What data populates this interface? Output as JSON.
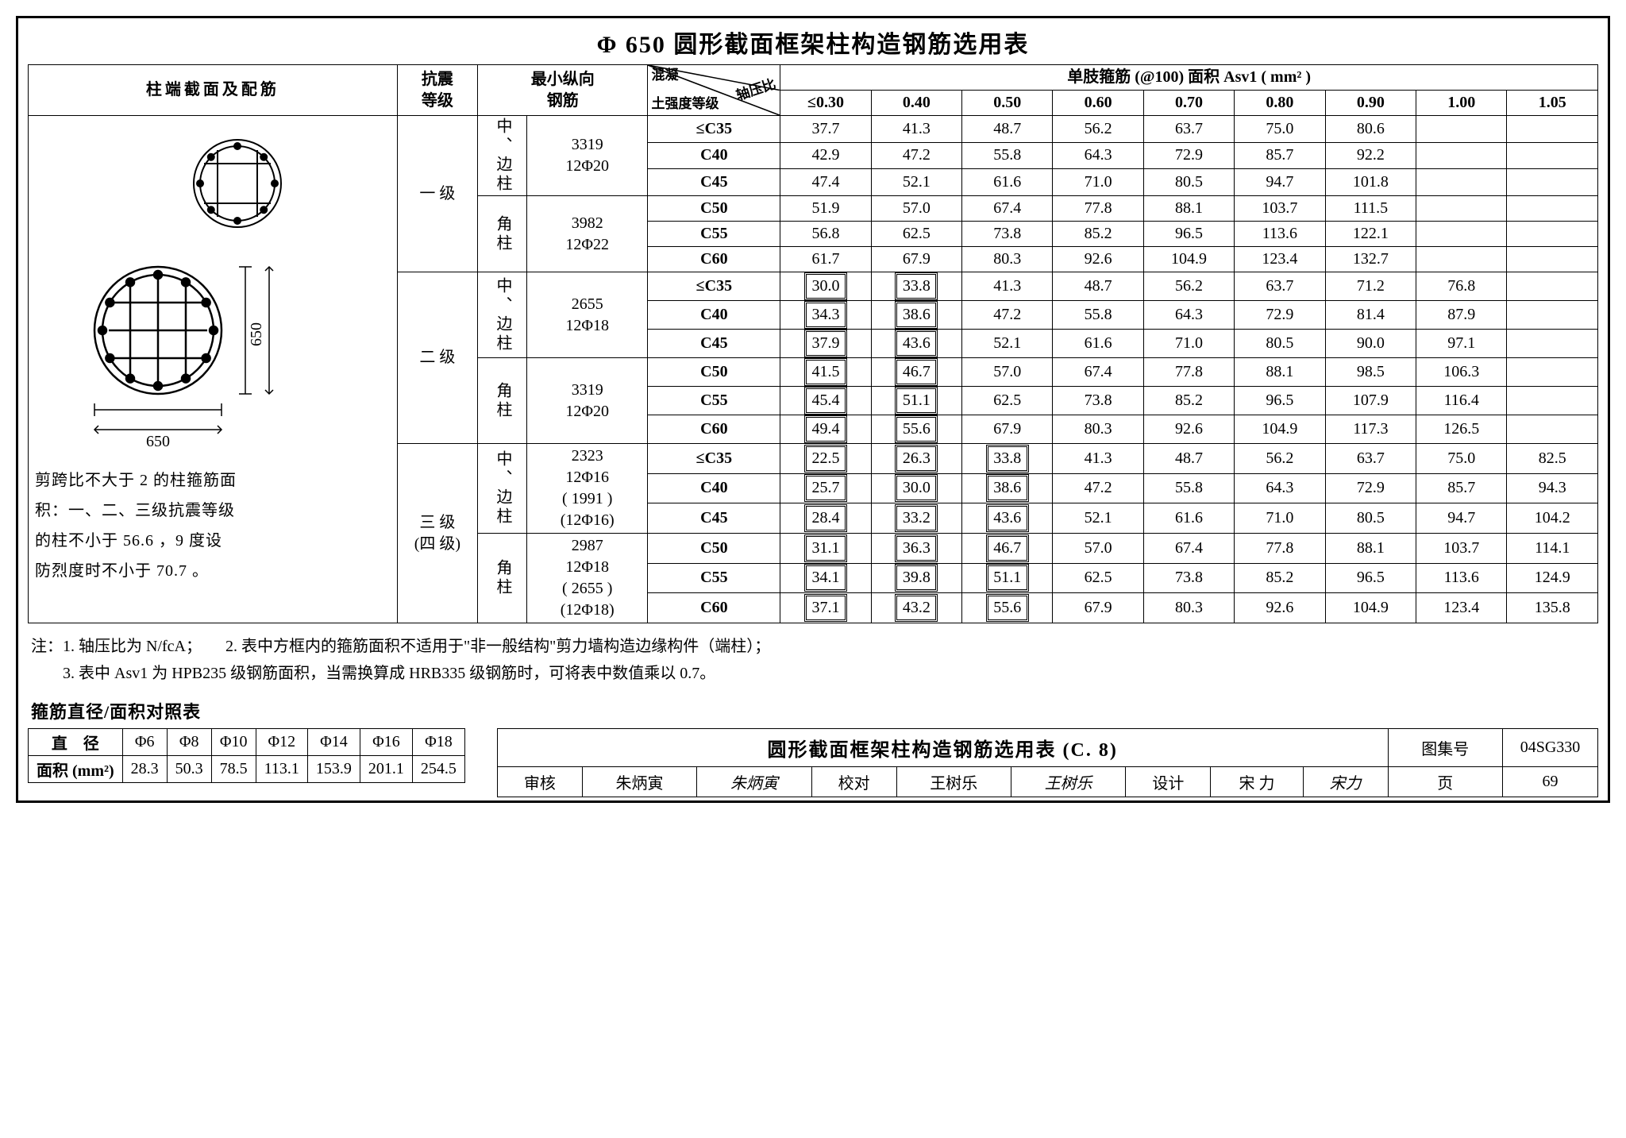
{
  "title": "Φ 650 圆形截面框架柱构造钢筋选用表",
  "header": {
    "col1": "柱端截面及配筋",
    "col2_a": "抗震",
    "col2_b": "等级",
    "col3_a": "最小纵向",
    "col3_b": "钢筋",
    "col4_up": "混凝",
    "col4_dn": "土强度等级",
    "col4_rt": "轴压比",
    "col5_title": "单肢箍筋 (@100) 面积 Asv1 ( mm² )",
    "ratios": [
      "≤0.30",
      "0.40",
      "0.50",
      "0.60",
      "0.70",
      "0.80",
      "0.90",
      "1.00",
      "1.05"
    ]
  },
  "diagram": {
    "dim": "650",
    "dim2": "650"
  },
  "note_diag_l1": "剪跨比不大于 2 的柱箍筋面",
  "note_diag_l2": "积：一、二、三级抗震等级",
  "note_diag_l3": "的柱不小于 56.6 ，9 度设",
  "note_diag_l4": "防烈度时不小于 70.7 。",
  "groups": [
    {
      "grade": "一 级",
      "subs": [
        {
          "coltype": "中、边柱",
          "rebar1": "3319",
          "rebar2": "12Φ20",
          "rows": [
            {
              "c": "≤C35",
              "v": [
                "37.7",
                "41.3",
                "48.7",
                "56.2",
                "63.7",
                "75.0",
                "80.6",
                "",
                ""
              ]
            },
            {
              "c": "C40",
              "v": [
                "42.9",
                "47.2",
                "55.8",
                "64.3",
                "72.9",
                "85.7",
                "92.2",
                "",
                ""
              ]
            },
            {
              "c": "C45",
              "v": [
                "47.4",
                "52.1",
                "61.6",
                "71.0",
                "80.5",
                "94.7",
                "101.8",
                "",
                ""
              ]
            }
          ]
        },
        {
          "coltype": "角柱",
          "rebar1": "3982",
          "rebar2": "12Φ22",
          "rows": [
            {
              "c": "C50",
              "v": [
                "51.9",
                "57.0",
                "67.4",
                "77.8",
                "88.1",
                "103.7",
                "111.5",
                "",
                ""
              ]
            },
            {
              "c": "C55",
              "v": [
                "56.8",
                "62.5",
                "73.8",
                "85.2",
                "96.5",
                "113.6",
                "122.1",
                "",
                ""
              ]
            },
            {
              "c": "C60",
              "v": [
                "61.7",
                "67.9",
                "80.3",
                "92.6",
                "104.9",
                "123.4",
                "132.7",
                "",
                ""
              ]
            }
          ]
        }
      ]
    },
    {
      "grade": "二 级",
      "subs": [
        {
          "coltype": "中、边柱",
          "rebar1": "2655",
          "rebar2": "12Φ18",
          "rows": [
            {
              "c": "≤C35",
              "v": [
                "30.0",
                "33.8",
                "41.3",
                "48.7",
                "56.2",
                "63.7",
                "71.2",
                "76.8",
                ""
              ],
              "box": [
                0,
                1
              ]
            },
            {
              "c": "C40",
              "v": [
                "34.3",
                "38.6",
                "47.2",
                "55.8",
                "64.3",
                "72.9",
                "81.4",
                "87.9",
                ""
              ],
              "box": [
                0,
                1
              ]
            },
            {
              "c": "C45",
              "v": [
                "37.9",
                "43.6",
                "52.1",
                "61.6",
                "71.0",
                "80.5",
                "90.0",
                "97.1",
                ""
              ],
              "box": [
                0,
                1
              ]
            }
          ]
        },
        {
          "coltype": "角柱",
          "rebar1": "3319",
          "rebar2": "12Φ20",
          "rows": [
            {
              "c": "C50",
              "v": [
                "41.5",
                "46.7",
                "57.0",
                "67.4",
                "77.8",
                "88.1",
                "98.5",
                "106.3",
                ""
              ],
              "box": [
                0,
                1
              ]
            },
            {
              "c": "C55",
              "v": [
                "45.4",
                "51.1",
                "62.5",
                "73.8",
                "85.2",
                "96.5",
                "107.9",
                "116.4",
                ""
              ],
              "box": [
                0,
                1
              ]
            },
            {
              "c": "C60",
              "v": [
                "49.4",
                "55.6",
                "67.9",
                "80.3",
                "92.6",
                "104.9",
                "117.3",
                "126.5",
                ""
              ],
              "box": [
                0,
                1
              ]
            }
          ]
        }
      ]
    },
    {
      "grade": "三  级\n(四 级)",
      "subs": [
        {
          "coltype": "中、边柱",
          "rebar1": "2323",
          "rebar2": "12Φ16",
          "rebar3": "( 1991 )",
          "rebar4": "(12Φ16)",
          "rows": [
            {
              "c": "≤C35",
              "v": [
                "22.5",
                "26.3",
                "33.8",
                "41.3",
                "48.7",
                "56.2",
                "63.7",
                "75.0",
                "82.5"
              ],
              "box": [
                0,
                1,
                2
              ]
            },
            {
              "c": "C40",
              "v": [
                "25.7",
                "30.0",
                "38.6",
                "47.2",
                "55.8",
                "64.3",
                "72.9",
                "85.7",
                "94.3"
              ],
              "box": [
                0,
                1,
                2
              ]
            },
            {
              "c": "C45",
              "v": [
                "28.4",
                "33.2",
                "43.6",
                "52.1",
                "61.6",
                "71.0",
                "80.5",
                "94.7",
                "104.2"
              ],
              "box": [
                0,
                1,
                2
              ]
            }
          ]
        },
        {
          "coltype": "角柱",
          "rebar1": "2987",
          "rebar2": "12Φ18",
          "rebar3": "( 2655 )",
          "rebar4": "(12Φ18)",
          "rows": [
            {
              "c": "C50",
              "v": [
                "31.1",
                "36.3",
                "46.7",
                "57.0",
                "67.4",
                "77.8",
                "88.1",
                "103.7",
                "114.1"
              ],
              "box": [
                0,
                1,
                2
              ]
            },
            {
              "c": "C55",
              "v": [
                "34.1",
                "39.8",
                "51.1",
                "62.5",
                "73.8",
                "85.2",
                "96.5",
                "113.6",
                "124.9"
              ],
              "box": [
                0,
                1,
                2
              ]
            },
            {
              "c": "C60",
              "v": [
                "37.1",
                "43.2",
                "55.6",
                "67.9",
                "80.3",
                "92.6",
                "104.9",
                "123.4",
                "135.8"
              ],
              "box": [
                0,
                1,
                2
              ]
            }
          ]
        }
      ]
    }
  ],
  "notes_l1": "注：1. 轴压比为 N/fcA；　　2. 表中方框内的箍筋面积不适用于\"非一般结构\"剪力墙构造边缘构件（端柱）；",
  "notes_l2": "　　3. 表中 Asv1 为 HPB235 级钢筋面积，当需换算成 HRB335 级钢筋时，可将表中数值乘以 0.7。",
  "subtitle": "箍筋直径/面积对照表",
  "area_table": {
    "h1": "直　径",
    "h2": "面积 (mm²)",
    "dia": [
      "Φ6",
      "Φ8",
      "Φ10",
      "Φ12",
      "Φ14",
      "Φ16",
      "Φ18"
    ],
    "area": [
      "28.3",
      "50.3",
      "78.5",
      "113.1",
      "153.9",
      "201.1",
      "254.5"
    ]
  },
  "footer": {
    "title": "圆形截面框架柱构造钢筋选用表 (C. 8)",
    "tuji_l": "图集号",
    "tuji_v": "04SG330",
    "shenhe_l": "审核",
    "shenhe_v": "朱炳寅",
    "shenhe_s": "朱炳寅",
    "jiaodui_l": "校对",
    "jiaodui_v": "王树乐",
    "jiaodui_s": "王树乐",
    "sheji_l": "设计",
    "sheji_v": "宋 力",
    "sheji_s": "宋力",
    "ye_l": "页",
    "ye_v": "69"
  }
}
